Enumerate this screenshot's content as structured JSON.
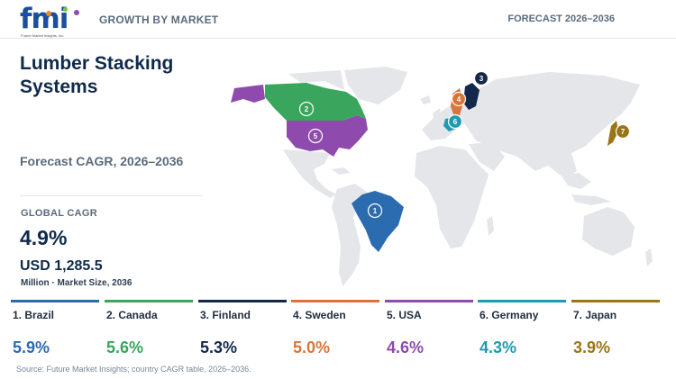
{
  "header": {
    "logo_text": "fmi",
    "logo_tagline": "Future Market Insights, Inc.",
    "left_label": "GROWTH BY MARKET",
    "right_label": "FORECAST 2026–2036"
  },
  "title": "Lumber Stacking Systems",
  "subtitle": "Forecast CAGR, 2026–2036",
  "global": {
    "cagr_label": "GLOBAL CAGR",
    "cagr_value": "4.9%",
    "market_size": "USD 1,285.5",
    "market_size_label": "Million · Market Size, 2036"
  },
  "colors": {
    "brazil": "#2b6cb0",
    "canada": "#3aa55c",
    "finland": "#14284b",
    "sweden": "#d9743a",
    "usa": "#8e4bad",
    "germany": "#1e9bb0",
    "japan": "#9a7516",
    "land": "#e4e6e9"
  },
  "chart_data": {
    "type": "table",
    "title": "Lumber Stacking Systems",
    "subtitle": "Forecast CAGR, 2026–2036",
    "countries": [
      {
        "rank": 1,
        "name": "Brazil",
        "label": "1. Brazil",
        "cagr": 5.9,
        "cagr_text": "5.9%",
        "color": "#2b6cb0"
      },
      {
        "rank": 2,
        "name": "Canada",
        "label": "2. Canada",
        "cagr": 5.6,
        "cagr_text": "5.6%",
        "color": "#3aa55c"
      },
      {
        "rank": 3,
        "name": "Finland",
        "label": "3. Finland",
        "cagr": 5.3,
        "cagr_text": "5.3%",
        "color": "#14284b"
      },
      {
        "rank": 4,
        "name": "Sweden",
        "label": "4. Sweden",
        "cagr": 5.0,
        "cagr_text": "5.0%",
        "color": "#d9743a"
      },
      {
        "rank": 5,
        "name": "USA",
        "label": "5. USA",
        "cagr": 4.6,
        "cagr_text": "4.6%",
        "color": "#8e4bad"
      },
      {
        "rank": 6,
        "name": "Germany",
        "label": "6. Germany",
        "cagr": 4.3,
        "cagr_text": "4.3%",
        "color": "#1e9bb0"
      },
      {
        "rank": 7,
        "name": "Japan",
        "label": "7. Japan",
        "cagr": 3.9,
        "cagr_text": "3.9%",
        "color": "#9a7516"
      }
    ]
  },
  "source": "Source: Future Market Insights; country CAGR table, 2026–2036."
}
